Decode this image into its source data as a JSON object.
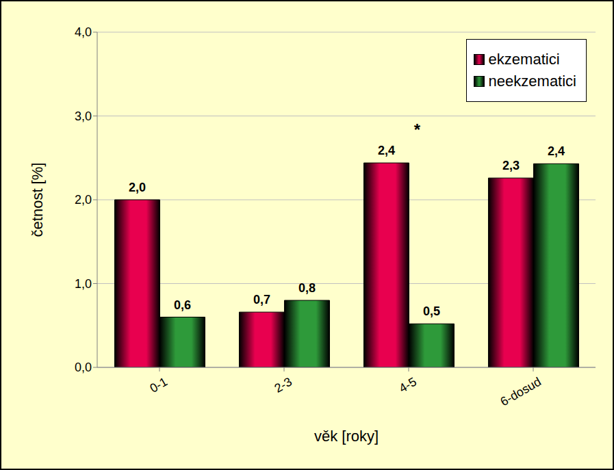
{
  "chart_data": {
    "type": "bar",
    "x_label": "věk [roky]",
    "y_label": "četnost [%]",
    "categories": [
      "0-1",
      "2-3",
      "4-5",
      "6-dosud"
    ],
    "series": [
      {
        "name": "ekzematici",
        "color": "#e8004f",
        "values": [
          2.0,
          0.66,
          2.44,
          2.26
        ],
        "value_labels": [
          "2,0",
          "0,7",
          "2,4",
          "2,3"
        ]
      },
      {
        "name": "neekzematici",
        "color": "#2e9a3a",
        "values": [
          0.6,
          0.8,
          0.52,
          2.43
        ],
        "value_labels": [
          "0,6",
          "0,8",
          "0,5",
          "2,4"
        ]
      }
    ],
    "ylim": [
      0,
      4
    ],
    "yticks": [
      {
        "value": 0,
        "label": "0,0"
      },
      {
        "value": 1,
        "label": "1,0"
      },
      {
        "value": 2,
        "label": "2,0"
      },
      {
        "value": 3,
        "label": "3,0"
      },
      {
        "value": 4,
        "label": "4,0"
      }
    ],
    "grid": true,
    "legend": "upper right",
    "data_labels": true,
    "annotations": [
      {
        "text": "*",
        "category": "4-5",
        "series": "ekzematici"
      }
    ]
  }
}
